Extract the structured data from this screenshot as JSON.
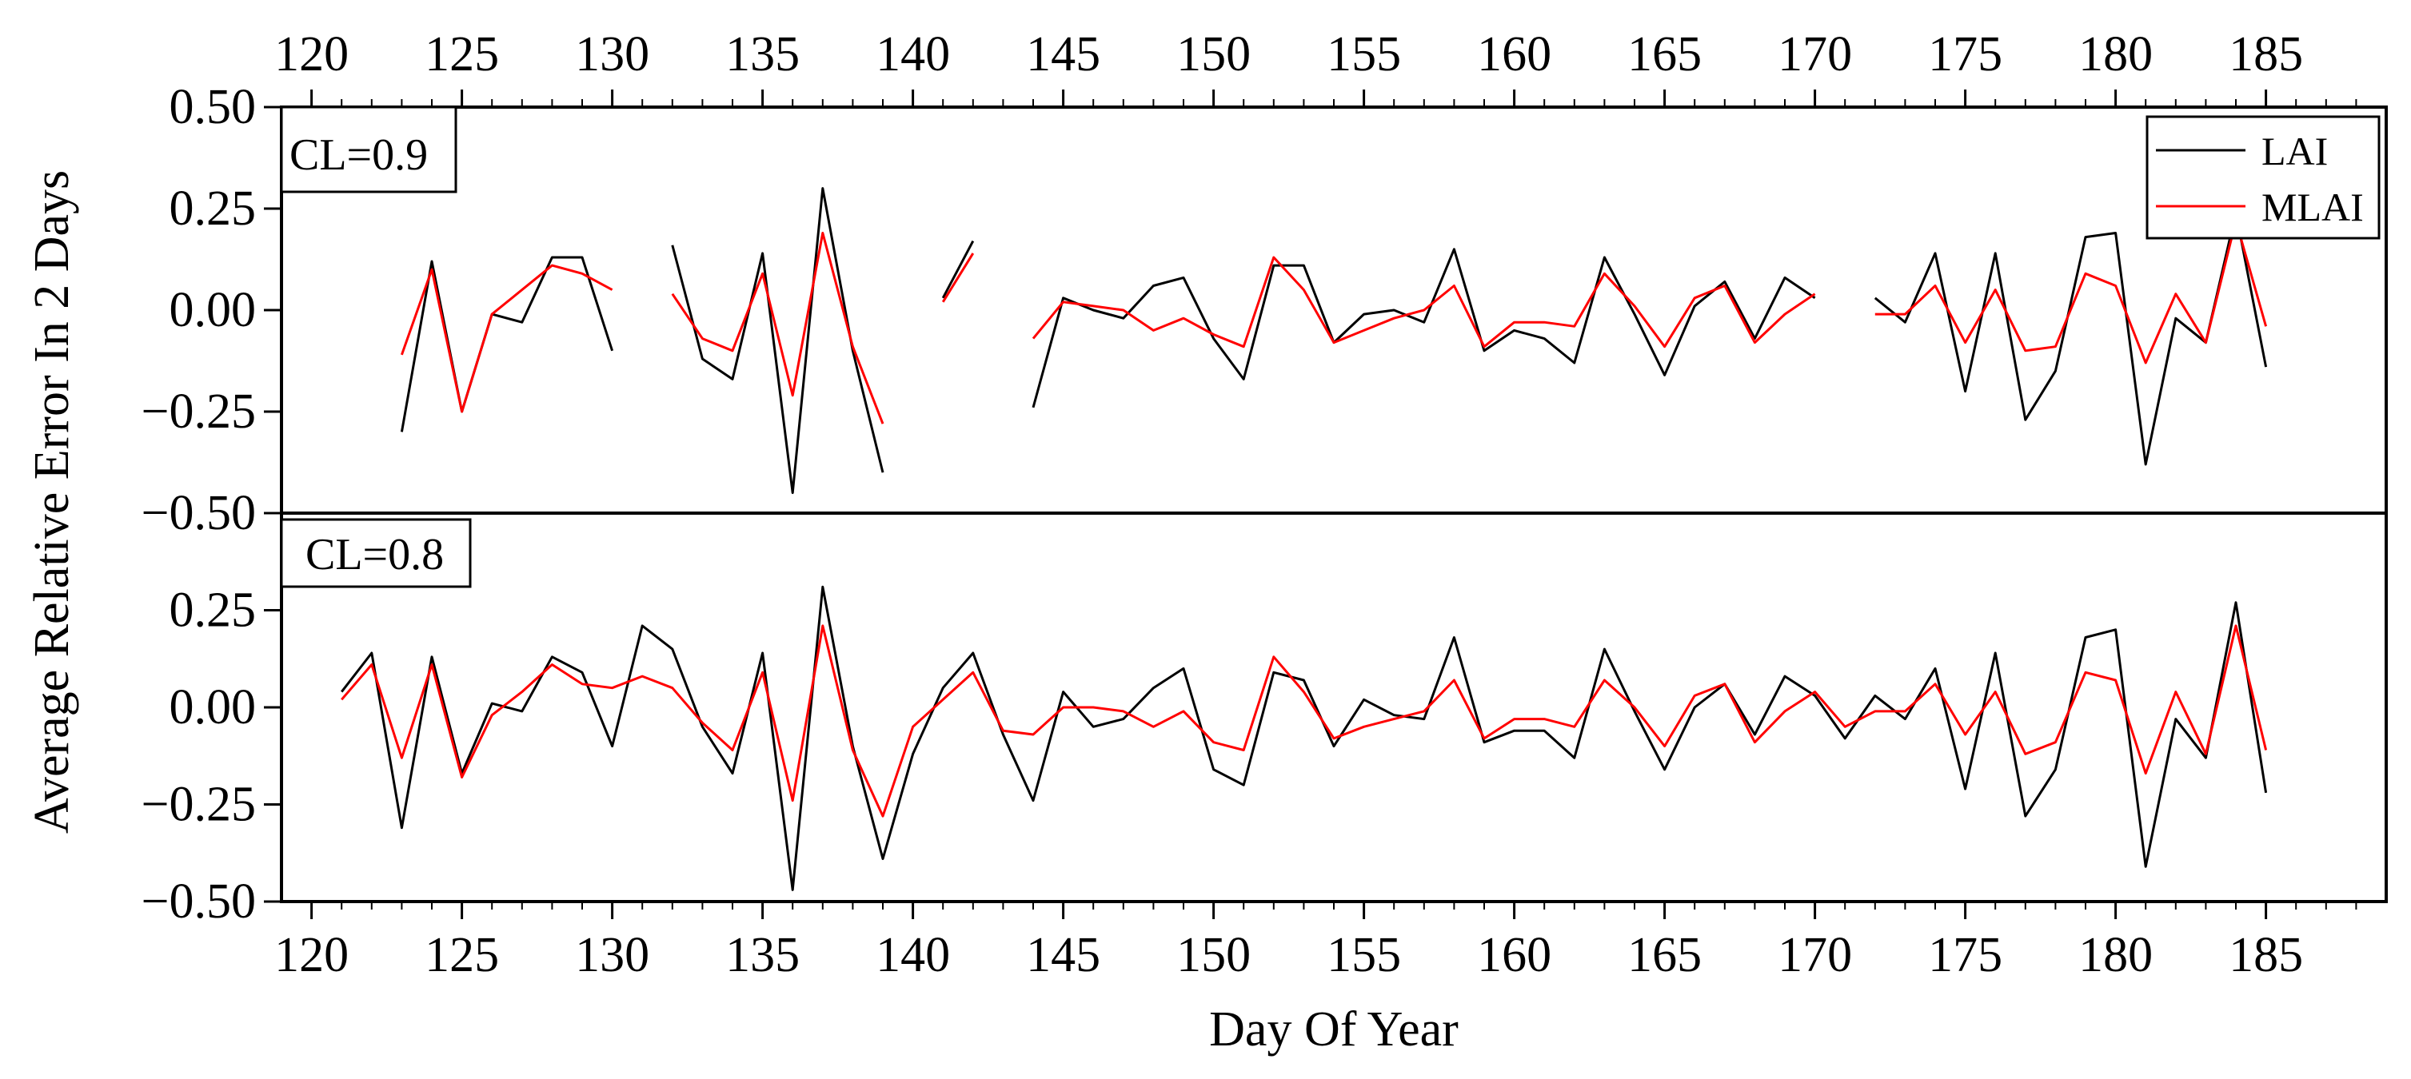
{
  "chart_data": {
    "type": "line",
    "xlabel": "Day Of Year",
    "ylabel": "Average Relative Error In 2 Days",
    "xlim": [
      119,
      189
    ],
    "ylim": [
      -0.5,
      0.5
    ],
    "xticks": [
      120,
      125,
      130,
      135,
      140,
      145,
      150,
      155,
      160,
      165,
      170,
      175,
      180,
      185
    ],
    "xtick_labels": [
      "120",
      "125",
      "130",
      "135",
      "140",
      "145",
      "150",
      "155",
      "160",
      "165",
      "170",
      "175",
      "180",
      "185"
    ],
    "yticks": [
      -0.5,
      -0.25,
      0,
      0.25,
      0.5
    ],
    "ytick_labels": [
      "−0.50",
      "−0.25",
      "0.00",
      "0.25",
      "0.50"
    ],
    "top_panel_ytick_labels": [
      "",
      "−0.25",
      "0.00",
      "0.25",
      "0.50"
    ],
    "bottom_panel_ytick_labels": [
      "−0.50",
      "−0.25",
      "0.00",
      "0.25",
      "−0.50"
    ],
    "legend": {
      "position": "top-right",
      "entries": [
        "LAI",
        "MLAI"
      ]
    },
    "colors": {
      "LAI": "#000000",
      "MLAI": "#ff0000"
    },
    "panels": [
      {
        "label": "CL=0.9",
        "series": [
          {
            "name": "LAI",
            "color": "#000000",
            "x": [
              121,
              122,
              123,
              124,
              125,
              126,
              127,
              128,
              129,
              130,
              131,
              132,
              133,
              134,
              135,
              136,
              137,
              138,
              139,
              140,
              141,
              142,
              143,
              144,
              145,
              146,
              147,
              148,
              149,
              150,
              151,
              152,
              153,
              154,
              155,
              156,
              157,
              158,
              159,
              160,
              161,
              162,
              163,
              164,
              165,
              166,
              167,
              168,
              169,
              170,
              171,
              172,
              173,
              174,
              175,
              176,
              177,
              178,
              179,
              180,
              181,
              182,
              183,
              184,
              185
            ],
            "y": [
              null,
              null,
              -0.3,
              0.12,
              -0.25,
              -0.01,
              -0.03,
              0.13,
              0.13,
              -0.1,
              null,
              0.16,
              -0.12,
              -0.17,
              0.14,
              -0.45,
              0.3,
              -0.1,
              -0.4,
              null,
              0.03,
              0.17,
              null,
              -0.24,
              0.03,
              0.0,
              -0.02,
              0.06,
              0.08,
              -0.07,
              -0.17,
              0.11,
              0.11,
              -0.08,
              -0.01,
              0.0,
              -0.03,
              0.15,
              -0.1,
              -0.05,
              -0.07,
              -0.13,
              0.13,
              -0.01,
              -0.16,
              0.01,
              0.07,
              -0.07,
              0.08,
              0.03,
              null,
              0.03,
              -0.03,
              0.14,
              -0.2,
              0.14,
              -0.27,
              -0.15,
              0.18,
              0.19,
              -0.38,
              -0.02,
              -0.08,
              0.24,
              -0.14
            ]
          },
          {
            "name": "MLAI",
            "color": "#ff0000",
            "x": [
              121,
              122,
              123,
              124,
              125,
              126,
              127,
              128,
              129,
              130,
              131,
              132,
              133,
              134,
              135,
              136,
              137,
              138,
              139,
              140,
              141,
              142,
              143,
              144,
              145,
              146,
              147,
              148,
              149,
              150,
              151,
              152,
              153,
              154,
              155,
              156,
              157,
              158,
              159,
              160,
              161,
              162,
              163,
              164,
              165,
              166,
              167,
              168,
              169,
              170,
              171,
              172,
              173,
              174,
              175,
              176,
              177,
              178,
              179,
              180,
              181,
              182,
              183,
              184,
              185
            ],
            "y": [
              null,
              null,
              -0.11,
              0.1,
              -0.25,
              -0.01,
              0.05,
              0.11,
              0.09,
              0.05,
              null,
              0.04,
              -0.07,
              -0.1,
              0.09,
              -0.21,
              0.19,
              -0.09,
              -0.28,
              null,
              0.02,
              0.14,
              null,
              -0.07,
              0.02,
              0.01,
              0.0,
              -0.05,
              -0.02,
              -0.06,
              -0.09,
              0.13,
              0.05,
              -0.08,
              -0.05,
              -0.02,
              0.0,
              0.06,
              -0.09,
              -0.03,
              -0.03,
              -0.04,
              0.09,
              0.01,
              -0.09,
              0.03,
              0.06,
              -0.08,
              -0.01,
              0.04,
              null,
              -0.01,
              -0.01,
              0.06,
              -0.08,
              0.05,
              -0.1,
              -0.09,
              0.09,
              0.06,
              -0.13,
              0.04,
              -0.08,
              0.22,
              -0.04
            ]
          }
        ]
      },
      {
        "label": "CL=0.8",
        "series": [
          {
            "name": "LAI",
            "color": "#000000",
            "x": [
              121,
              122,
              123,
              124,
              125,
              126,
              127,
              128,
              129,
              130,
              131,
              132,
              133,
              134,
              135,
              136,
              137,
              138,
              139,
              140,
              141,
              142,
              143,
              144,
              145,
              146,
              147,
              148,
              149,
              150,
              151,
              152,
              153,
              154,
              155,
              156,
              157,
              158,
              159,
              160,
              161,
              162,
              163,
              164,
              165,
              166,
              167,
              168,
              169,
              170,
              171,
              172,
              173,
              174,
              175,
              176,
              177,
              178,
              179,
              180,
              181,
              182,
              183,
              184,
              185
            ],
            "y": [
              0.04,
              0.14,
              -0.31,
              0.13,
              -0.17,
              0.01,
              -0.01,
              0.13,
              0.09,
              -0.1,
              0.21,
              0.15,
              -0.05,
              -0.17,
              0.14,
              -0.47,
              0.31,
              -0.1,
              -0.39,
              -0.12,
              0.05,
              0.14,
              -0.07,
              -0.24,
              0.04,
              -0.05,
              -0.03,
              0.05,
              0.1,
              -0.16,
              -0.2,
              0.09,
              0.07,
              -0.1,
              0.02,
              -0.02,
              -0.03,
              0.18,
              -0.09,
              -0.06,
              -0.06,
              -0.13,
              0.15,
              -0.01,
              -0.16,
              0.0,
              0.06,
              -0.07,
              0.08,
              0.03,
              -0.08,
              0.03,
              -0.03,
              0.1,
              -0.21,
              0.14,
              -0.28,
              -0.16,
              0.18,
              0.2,
              -0.41,
              -0.03,
              -0.13,
              0.27,
              -0.22
            ]
          },
          {
            "name": "MLAI",
            "color": "#ff0000",
            "x": [
              121,
              122,
              123,
              124,
              125,
              126,
              127,
              128,
              129,
              130,
              131,
              132,
              133,
              134,
              135,
              136,
              137,
              138,
              139,
              140,
              141,
              142,
              143,
              144,
              145,
              146,
              147,
              148,
              149,
              150,
              151,
              152,
              153,
              154,
              155,
              156,
              157,
              158,
              159,
              160,
              161,
              162,
              163,
              164,
              165,
              166,
              167,
              168,
              169,
              170,
              171,
              172,
              173,
              174,
              175,
              176,
              177,
              178,
              179,
              180,
              181,
              182,
              183,
              184,
              185
            ],
            "y": [
              0.02,
              0.11,
              -0.13,
              0.11,
              -0.18,
              -0.02,
              0.04,
              0.11,
              0.06,
              0.05,
              0.08,
              0.05,
              -0.04,
              -0.11,
              0.09,
              -0.24,
              0.21,
              -0.11,
              -0.28,
              -0.05,
              0.02,
              0.09,
              -0.06,
              -0.07,
              0.0,
              0.0,
              -0.01,
              -0.05,
              -0.01,
              -0.09,
              -0.11,
              0.13,
              0.04,
              -0.08,
              -0.05,
              -0.03,
              -0.01,
              0.07,
              -0.08,
              -0.03,
              -0.03,
              -0.05,
              0.07,
              0.0,
              -0.1,
              0.03,
              0.06,
              -0.09,
              -0.01,
              0.04,
              -0.05,
              -0.01,
              -0.01,
              0.06,
              -0.07,
              0.04,
              -0.12,
              -0.09,
              0.09,
              0.07,
              -0.17,
              0.04,
              -0.12,
              0.21,
              -0.11
            ]
          }
        ]
      }
    ]
  }
}
